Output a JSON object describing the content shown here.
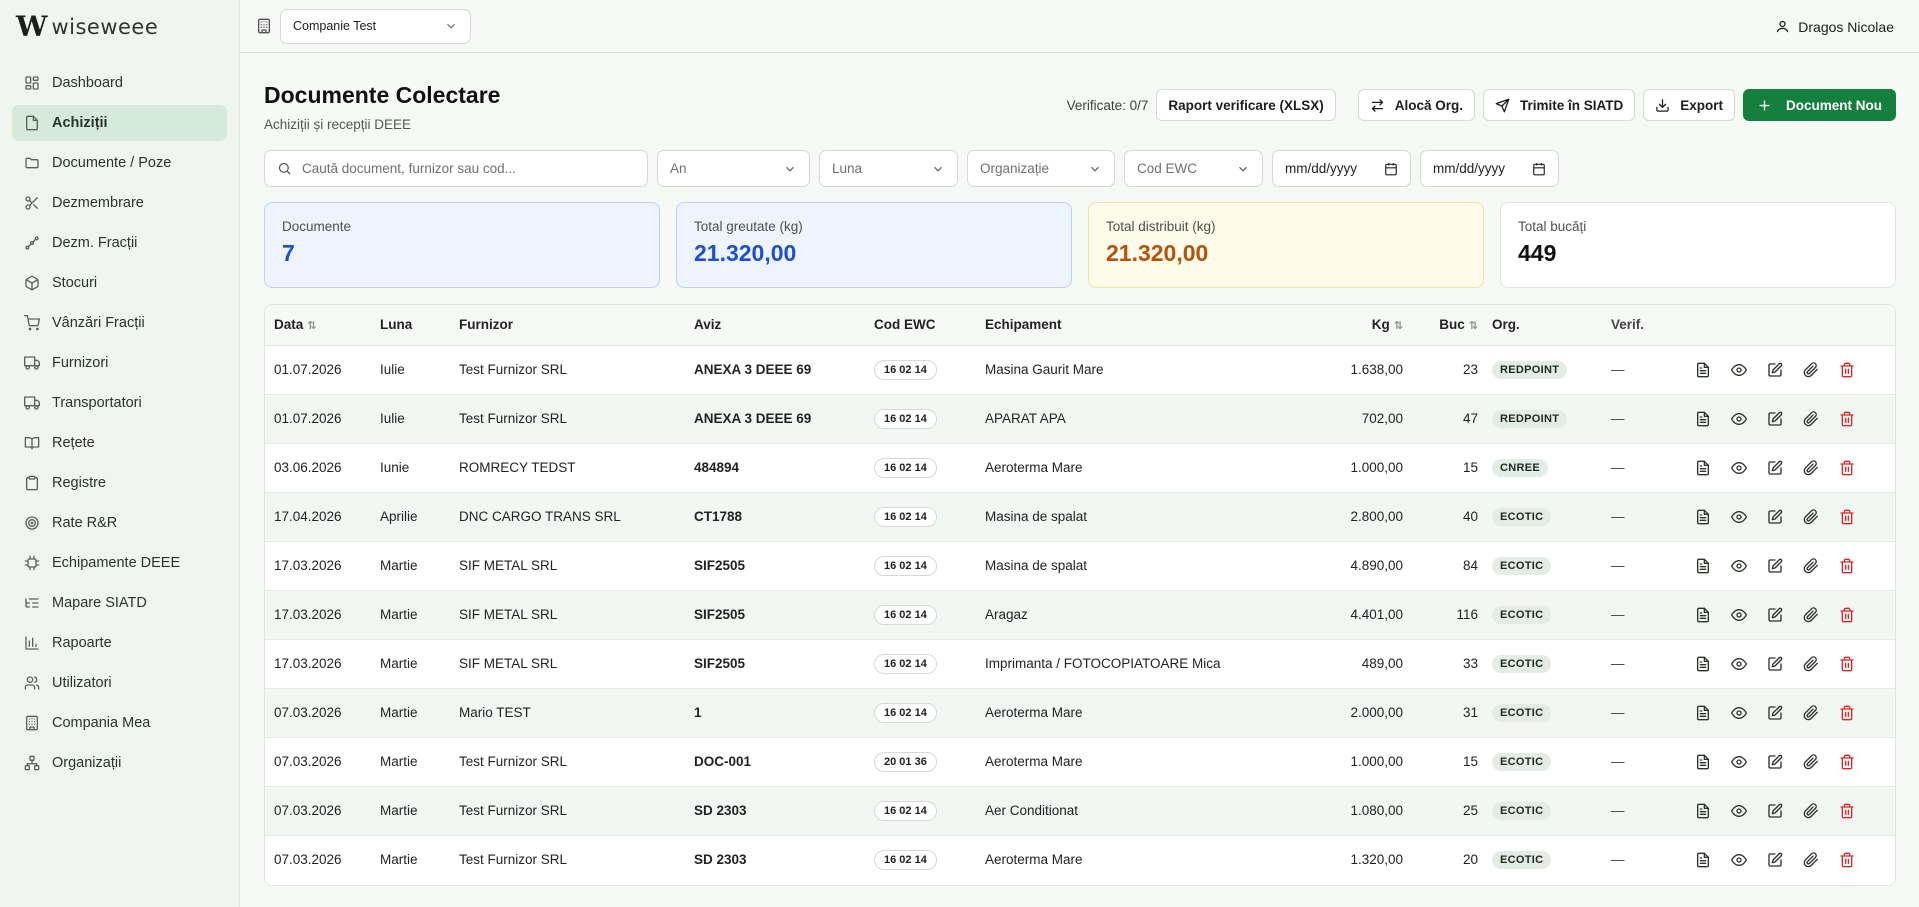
{
  "brand": {
    "mark": "W",
    "name": "wiseweee"
  },
  "sidebar": {
    "items": [
      {
        "label": "Dashboard",
        "icon": "dashboard-icon"
      },
      {
        "label": "Achiziții",
        "icon": "file-icon",
        "active": true
      },
      {
        "label": "Documente / Poze",
        "icon": "folder-icon"
      },
      {
        "label": "Dezmembrare",
        "icon": "scissors-icon"
      },
      {
        "label": "Dezm. Fracții",
        "icon": "fractions-icon"
      },
      {
        "label": "Stocuri",
        "icon": "package-icon"
      },
      {
        "label": "Vânzări Fracții",
        "icon": "cart-icon"
      },
      {
        "label": "Furnizori",
        "icon": "truck-icon"
      },
      {
        "label": "Transportatori",
        "icon": "truck-icon"
      },
      {
        "label": "Rețete",
        "icon": "book-icon"
      },
      {
        "label": "Registre",
        "icon": "clipboard-icon"
      },
      {
        "label": "Rate R&R",
        "icon": "target-icon"
      },
      {
        "label": "Echipamente DEEE",
        "icon": "cpu-icon"
      },
      {
        "label": "Mapare SIATD",
        "icon": "list-tree-icon"
      },
      {
        "label": "Rapoarte",
        "icon": "bar-chart-icon"
      },
      {
        "label": "Utilizatori",
        "icon": "users-icon"
      },
      {
        "label": "Compania Mea",
        "icon": "building-icon"
      },
      {
        "label": "Organizații",
        "icon": "network-icon"
      }
    ]
  },
  "topbar": {
    "company": "Companie Test",
    "user": "Dragos Nicolae"
  },
  "page": {
    "title": "Documente Colectare",
    "subtitle": "Achiziții și recepții DEEE"
  },
  "actions": {
    "verificate": "Verificate: 0/7",
    "raport": "Raport verificare (XLSX)",
    "aloca": "Alocă Org.",
    "trimite": "Trimite în SIATD",
    "export": "Export",
    "nou": "Document Nou"
  },
  "filters": {
    "search_placeholder": "Caută document, furnizor sau cod...",
    "an": "An",
    "luna": "Luna",
    "organizatie": "Organizație",
    "cod_ewc": "Cod EWC",
    "date_from": "mm/dd/yyyy",
    "date_to": "mm/dd/yyyy"
  },
  "stats": {
    "documente": {
      "label": "Documente",
      "value": "7"
    },
    "greutate": {
      "label": "Total greutate (kg)",
      "value": "21.320,00"
    },
    "distribuit": {
      "label": "Total distribuit (kg)",
      "value": "21.320,00"
    },
    "bucati": {
      "label": "Total bucăți",
      "value": "449"
    }
  },
  "table": {
    "headers": {
      "data": "Data",
      "luna": "Luna",
      "furnizor": "Furnizor",
      "aviz": "Aviz",
      "cod_ewc": "Cod EWC",
      "echipament": "Echipament",
      "kg": "Kg",
      "buc": "Buc",
      "org": "Org.",
      "verif": "Verif."
    },
    "rows": [
      {
        "data": "01.07.2026",
        "luna": "Iulie",
        "furnizor": "Test Furnizor SRL",
        "aviz": "ANEXA 3 DEEE 69",
        "ewc": "16 02 14",
        "echipament": "Masina Gaurit Mare",
        "kg": "1.638,00",
        "buc": "23",
        "org": "REDPOINT",
        "verif": "—"
      },
      {
        "data": "01.07.2026",
        "luna": "Iulie",
        "furnizor": "Test Furnizor SRL",
        "aviz": "ANEXA 3 DEEE 69",
        "ewc": "16 02 14",
        "echipament": "APARAT APA",
        "kg": "702,00",
        "buc": "47",
        "org": "REDPOINT",
        "verif": "—"
      },
      {
        "data": "03.06.2026",
        "luna": "Iunie",
        "furnizor": "ROMRECY TEDST",
        "aviz": "484894",
        "ewc": "16 02 14",
        "echipament": "Aeroterma Mare",
        "kg": "1.000,00",
        "buc": "15",
        "org": "CNREE",
        "verif": "—"
      },
      {
        "data": "17.04.2026",
        "luna": "Aprilie",
        "furnizor": "DNC CARGO TRANS SRL",
        "aviz": "CT1788",
        "ewc": "16 02 14",
        "echipament": "Masina de spalat",
        "kg": "2.800,00",
        "buc": "40",
        "org": "ECOTIC",
        "verif": "—"
      },
      {
        "data": "17.03.2026",
        "luna": "Martie",
        "furnizor": "SIF METAL SRL",
        "aviz": "SIF2505",
        "ewc": "16 02 14",
        "echipament": "Masina de spalat",
        "kg": "4.890,00",
        "buc": "84",
        "org": "ECOTIC",
        "verif": "—"
      },
      {
        "data": "17.03.2026",
        "luna": "Martie",
        "furnizor": "SIF METAL SRL",
        "aviz": "SIF2505",
        "ewc": "16 02 14",
        "echipament": "Aragaz",
        "kg": "4.401,00",
        "buc": "116",
        "org": "ECOTIC",
        "verif": "—"
      },
      {
        "data": "17.03.2026",
        "luna": "Martie",
        "furnizor": "SIF METAL SRL",
        "aviz": "SIF2505",
        "ewc": "16 02 14",
        "echipament": "Imprimanta / FOTOCOPIATOARE Mica",
        "kg": "489,00",
        "buc": "33",
        "org": "ECOTIC",
        "verif": "—"
      },
      {
        "data": "07.03.2026",
        "luna": "Martie",
        "furnizor": "Mario TEST",
        "aviz": "1",
        "ewc": "16 02 14",
        "echipament": "Aeroterma Mare",
        "kg": "2.000,00",
        "buc": "31",
        "org": "ECOTIC",
        "verif": "—"
      },
      {
        "data": "07.03.2026",
        "luna": "Martie",
        "furnizor": "Test Furnizor SRL",
        "aviz": "DOC-001",
        "ewc": "20 01 36",
        "echipament": "Aeroterma Mare",
        "kg": "1.000,00",
        "buc": "15",
        "org": "ECOTIC",
        "verif": "—"
      },
      {
        "data": "07.03.2026",
        "luna": "Martie",
        "furnizor": "Test Furnizor SRL",
        "aviz": "SD 2303",
        "ewc": "16 02 14",
        "echipament": "Aer Conditionat",
        "kg": "1.080,00",
        "buc": "25",
        "org": "ECOTIC",
        "verif": "—"
      },
      {
        "data": "07.03.2026",
        "luna": "Martie",
        "furnizor": "Test Furnizor SRL",
        "aviz": "SD 2303",
        "ewc": "16 02 14",
        "echipament": "Aeroterma Mare",
        "kg": "1.320,00",
        "buc": "20",
        "org": "ECOTIC",
        "verif": "—"
      }
    ]
  },
  "colors": {
    "accent": "#15803d",
    "active_nav": "#d6ead9",
    "delete": "#dc2626"
  }
}
